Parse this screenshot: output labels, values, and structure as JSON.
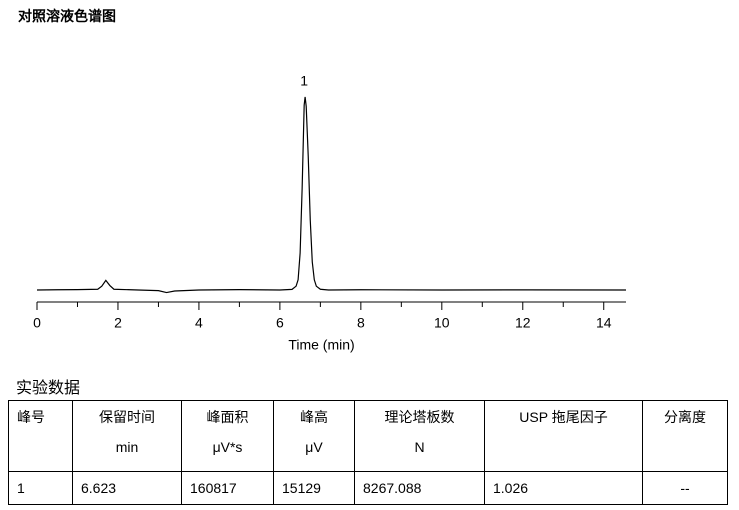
{
  "title": "对照溶液色谱图",
  "chart_data": {
    "type": "line",
    "x_label": "Time (min)",
    "x": [
      0,
      0.5,
      1.0,
      1.5,
      1.6,
      1.7,
      1.8,
      1.9,
      2.5,
      3.0,
      3.2,
      3.4,
      4.0,
      5.0,
      6.0,
      6.3,
      6.4,
      6.45,
      6.5,
      6.55,
      6.6,
      6.623,
      6.65,
      6.7,
      6.75,
      6.8,
      6.85,
      6.9,
      7.0,
      7.2,
      8.0,
      10.0,
      12.0,
      14.55
    ],
    "series": [
      {
        "color": "#000000",
        "values": [
          0,
          20,
          30,
          60,
          300,
          750,
          350,
          60,
          0,
          -50,
          -200,
          -80,
          0,
          30,
          0,
          50,
          300,
          800,
          2900,
          8000,
          14500,
          15129,
          14400,
          10500,
          5500,
          2200,
          800,
          300,
          60,
          0,
          20,
          0,
          10,
          0
        ]
      }
    ],
    "xlim": [
      0,
      14.55
    ],
    "xticks": [
      0,
      2,
      4,
      6,
      8,
      10,
      12,
      14
    ],
    "xminorticks": [
      1,
      3,
      5,
      7,
      9,
      11,
      13
    ],
    "annotations": [
      {
        "text": "1",
        "x": 6.623
      }
    ]
  },
  "section_title": "实验数据",
  "table": {
    "headers": [
      {
        "name": "峰号"
      },
      {
        "name": "保留时间",
        "unit": "min"
      },
      {
        "name": "峰面积",
        "unit": "μV*s"
      },
      {
        "name": "峰高",
        "unit": "μV"
      },
      {
        "name": "理论塔板数",
        "unit": "N"
      },
      {
        "name": "USP 拖尾因子"
      },
      {
        "name": "分离度"
      }
    ],
    "rows": [
      [
        "1",
        "6.623",
        "160817",
        "15129",
        "8267.088",
        "1.026",
        "--"
      ]
    ]
  }
}
